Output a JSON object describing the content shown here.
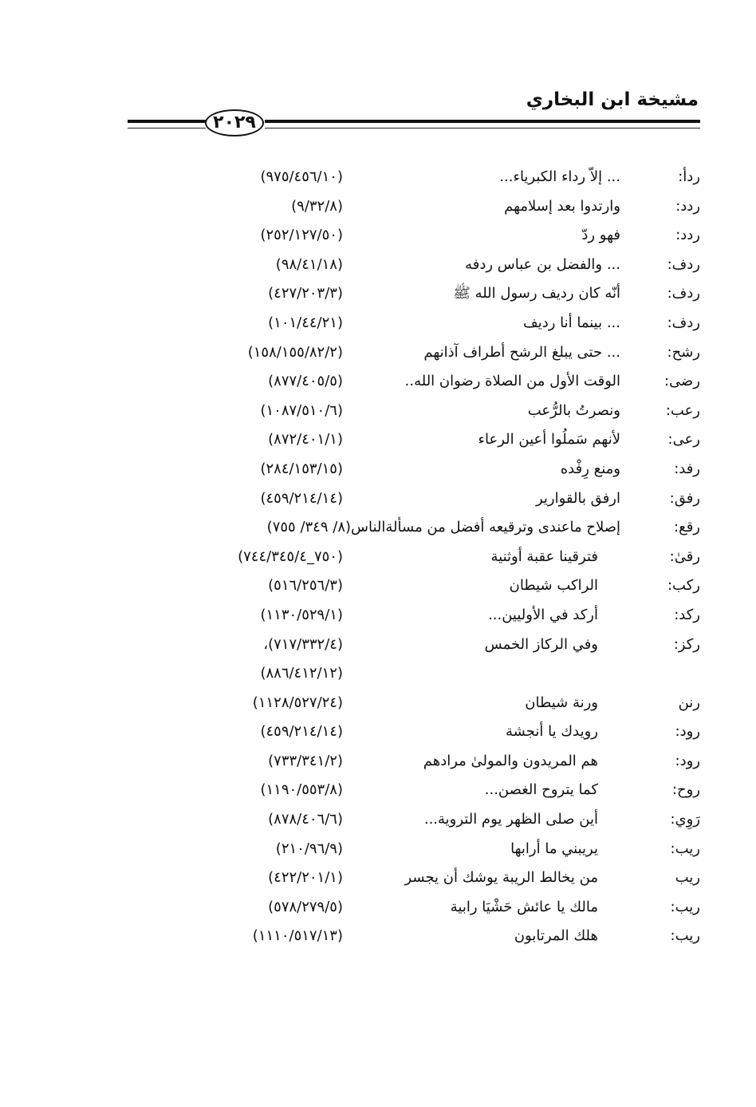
{
  "header": {
    "title": "مشيخة ابن البخاري",
    "page_number": "٢٠٢٩"
  },
  "entries": [
    {
      "root": "ردأ:",
      "text": "... إلاّ رداء الكبرياء...",
      "ref": "(٩٧٥/٤٥٦/١٠)"
    },
    {
      "root": "ردد:",
      "text": "وارتدوا بعد إسلامهم",
      "ref": "(٩/٣٢/٨)"
    },
    {
      "root": "ردد:",
      "text": "فهو ردّ",
      "ref": "(٢٥٢/١٢٧/٥٠)"
    },
    {
      "root": "ردف:",
      "text": "... والفضل بن عباس ردفه",
      "ref": "(٩٨/٤١/١٨)"
    },
    {
      "root": "ردف:",
      "text": "أنّه كان رديف رسول الله ﷺ",
      "ref": "(٤٢٧/٢٠٣/٣)"
    },
    {
      "root": "ردف:",
      "text": "... بينما أنا رديف",
      "ref": "(١٠١/٤٤/٢١)"
    },
    {
      "root": "رشح:",
      "text": "... حتى يبلغ الرشح أطراف آذانهم",
      "ref": "(١٥٨/١٥٥/٨٢/٢)"
    },
    {
      "root": "رضى:",
      "text": "الوقت الأول من الصلاة رضوان الله..",
      "ref": "(٨٧٧/٤٠٥/٥)"
    },
    {
      "root": "رعب:",
      "text": "ونصرتُ بالرُّعب",
      "ref": "(١٠٨٧/٥١٠/٦)"
    },
    {
      "root": "رعى:",
      "text": "لأنهم سَملُوا أعين الرعاء",
      "ref": "(٨٧٢/٤٠١/١)"
    },
    {
      "root": "رفد:",
      "text": "ومنع رِفْده",
      "ref": "(٢٨٤/١٥٣/١٥)"
    },
    {
      "root": "رفق:",
      "text": "ارفق بالقوارير",
      "ref": "(٤٥٩/٢١٤/١٤)"
    },
    {
      "root": "رقع:",
      "text": "إصلاح ماعندى وترقيعه أفضل من مسألةالناس(٨/ ٣٤٩/ ٧٥٥)",
      "ref": ""
    },
    {
      "root": "رقىٰ:",
      "text": "فترقينا عقبة أوثنية",
      "ref": "(٧٥٠_٧٤٤/٣٤٥/٤)",
      "indent": true
    },
    {
      "root": "ركب:",
      "text": "الراكب شيطان",
      "ref": "(٥١٦/٢٥٦/٣)",
      "indent": true
    },
    {
      "root": "ركد:",
      "text": "أركد في الأوليين...",
      "ref": "(١١٣٠/٥٢٩/١)",
      "indent": true
    },
    {
      "root": "ركز:",
      "text": "وفي الركاز الخمس",
      "ref": "(٧١٧/٣٣٢/٤)،",
      "indent": true
    },
    {
      "root": "",
      "text": "",
      "ref": "(٨٨٦/٤١٢/١٢)",
      "indent": true
    },
    {
      "root": "رنن",
      "text": "ورنة شيطان",
      "ref": "(١١٢٨/٥٢٧/٢٤)",
      "indent": true
    },
    {
      "root": "رود:",
      "text": "رويدك يا أنجشة",
      "ref": "(٤٥٩/٢١٤/١٤)",
      "indent": true
    },
    {
      "root": "رود:",
      "text": "هم المريدون والمولىٰ مرادهم",
      "ref": "(٧٣٣/٣٤١/٢)",
      "indent": true
    },
    {
      "root": "روح:",
      "text": "كما يتروح الغصن...",
      "ref": "(١١٩٠/٥٥٣/٨)",
      "indent": true
    },
    {
      "root": "رَوِي:",
      "text": "أين صلى الظهر يوم التروية...",
      "ref": "(٨٧٨/٤٠٦/٦)",
      "indent": true
    },
    {
      "root": "ريب:",
      "text": "يريبني ما أرابها",
      "ref": "(٢١٠/٩٦/٩)",
      "indent": true
    },
    {
      "root": "ريب",
      "text": "من يخالط الريبة يوشك أن يجسر",
      "ref": "(٤٢٢/٢٠١/١)",
      "indent": true
    },
    {
      "root": "ريب:",
      "text": "مالك يا عائش حَشْيَا رابية",
      "ref": "(٥٧٨/٢٧٩/٥)",
      "indent": true
    },
    {
      "root": "ريب:",
      "text": "هلك المرتابون",
      "ref": "(١١١٠/٥١٧/١٣)",
      "indent": true
    }
  ]
}
